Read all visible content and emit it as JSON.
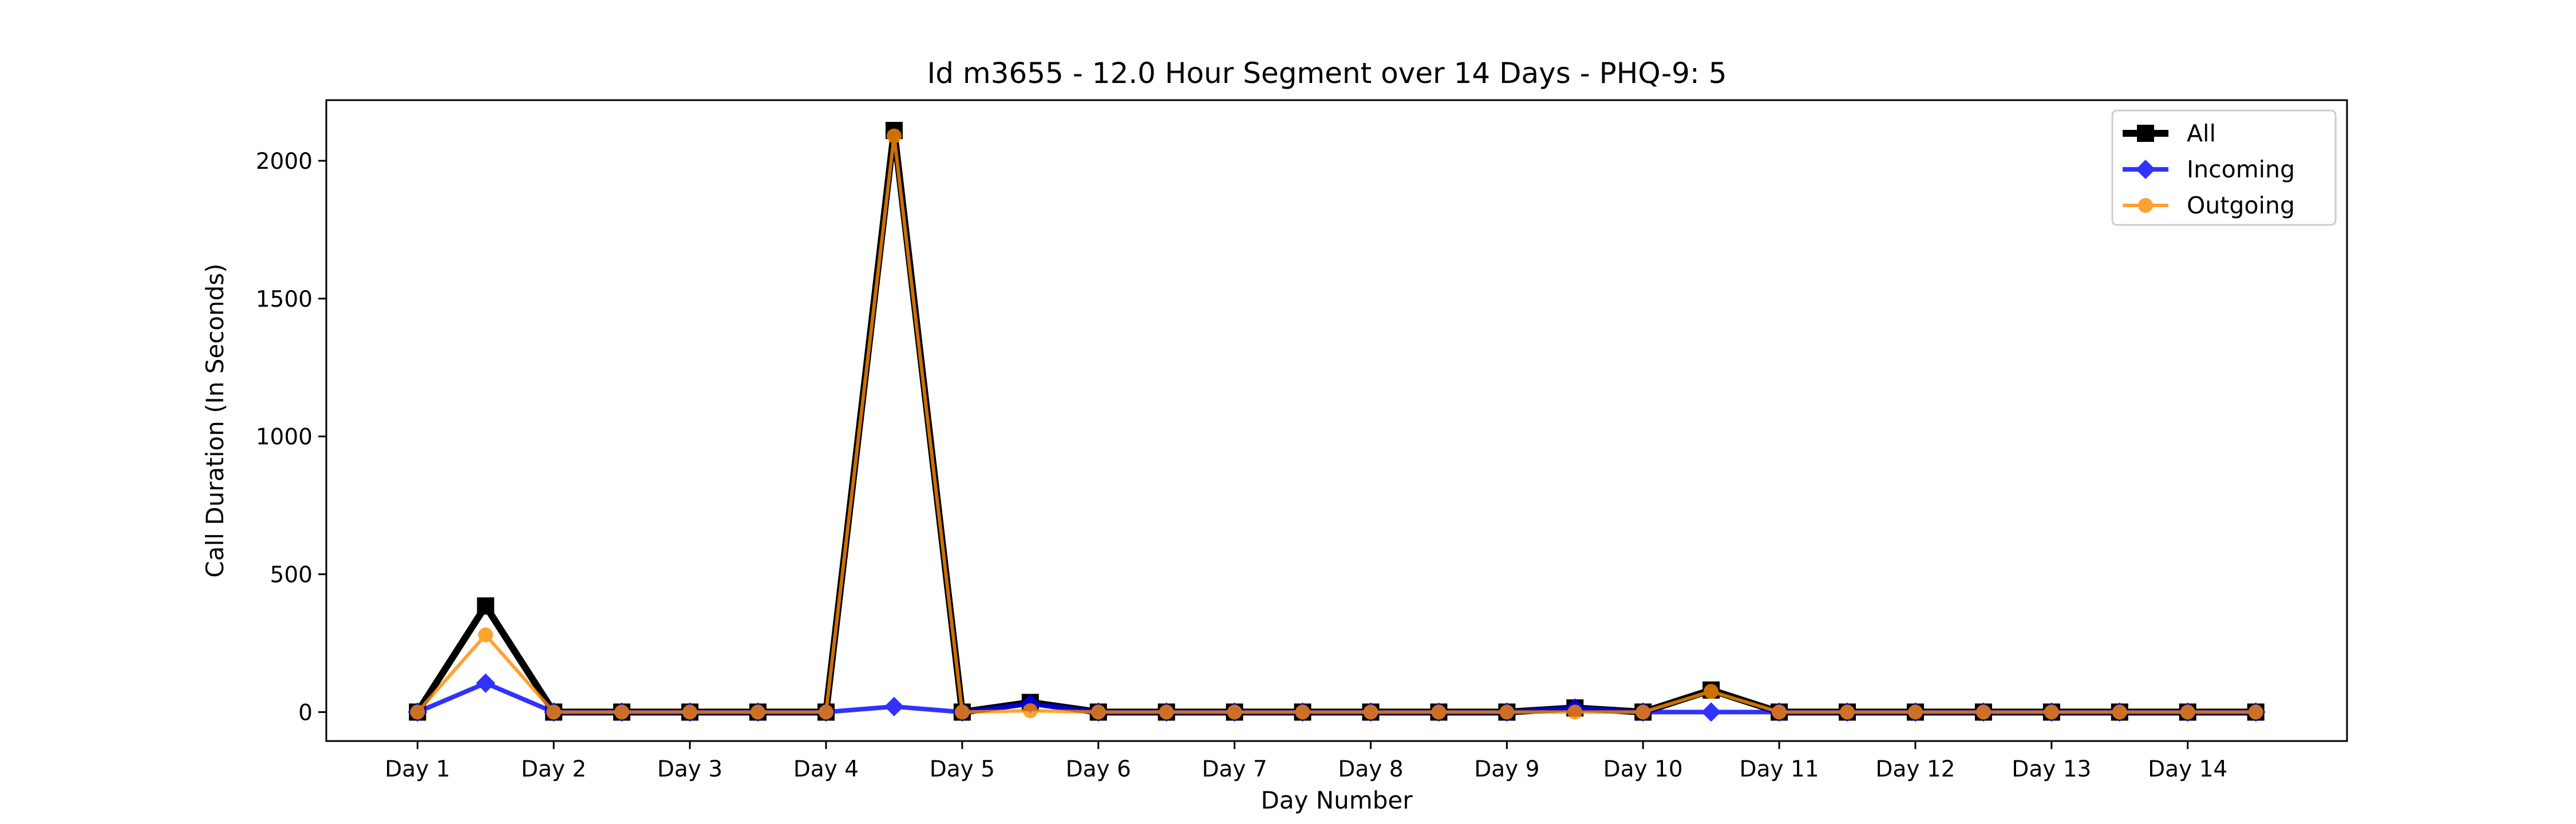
{
  "chart_data": {
    "type": "line",
    "title": "Id m3655 - 12.0 Hour Segment over 14 Days - PHQ-9: 5",
    "xlabel": "Day Number",
    "ylabel": "Call Duration (In Seconds)",
    "x_tick_labels": [
      "Day 1",
      "Day 2",
      "Day 3",
      "Day 4",
      "Day 5",
      "Day 6",
      "Day 7",
      "Day 8",
      "Day 9",
      "Day 10",
      "Day 11",
      "Day 12",
      "Day 13",
      "Day 14"
    ],
    "y_ticks": [
      0,
      500,
      1000,
      1500,
      2000
    ],
    "xlim": [
      0.33,
      15.17
    ],
    "ylim": [
      -105,
      2220
    ],
    "grid": false,
    "legend_position": "top-right",
    "x": [
      1,
      1.5,
      2,
      2.5,
      3,
      3.5,
      4,
      4.5,
      5,
      5.5,
      6,
      6.5,
      7,
      7.5,
      8,
      8.5,
      9,
      9.5,
      10,
      10.5,
      11,
      11.5,
      12,
      12.5,
      13,
      13.5,
      14,
      14.5
    ],
    "series": [
      {
        "name": "All",
        "color": "#000000",
        "marker": "square",
        "values": [
          0,
          385,
          0,
          0,
          0,
          0,
          0,
          2110,
          0,
          35,
          0,
          0,
          0,
          0,
          0,
          0,
          0,
          15,
          0,
          80,
          0,
          0,
          0,
          0,
          0,
          0,
          0,
          0
        ]
      },
      {
        "name": "Incoming",
        "color": "#0000ff",
        "marker": "diamond",
        "values": [
          0,
          105,
          0,
          0,
          0,
          0,
          0,
          20,
          0,
          30,
          0,
          0,
          0,
          0,
          0,
          0,
          0,
          15,
          0,
          0,
          0,
          0,
          0,
          0,
          0,
          0,
          0,
          0
        ]
      },
      {
        "name": "Outgoing",
        "color": "#ff8c00",
        "marker": "circle",
        "values": [
          0,
          280,
          0,
          0,
          0,
          0,
          0,
          2090,
          0,
          5,
          0,
          0,
          0,
          0,
          0,
          0,
          0,
          0,
          0,
          75,
          0,
          0,
          0,
          0,
          0,
          0,
          0,
          0
        ]
      }
    ]
  }
}
